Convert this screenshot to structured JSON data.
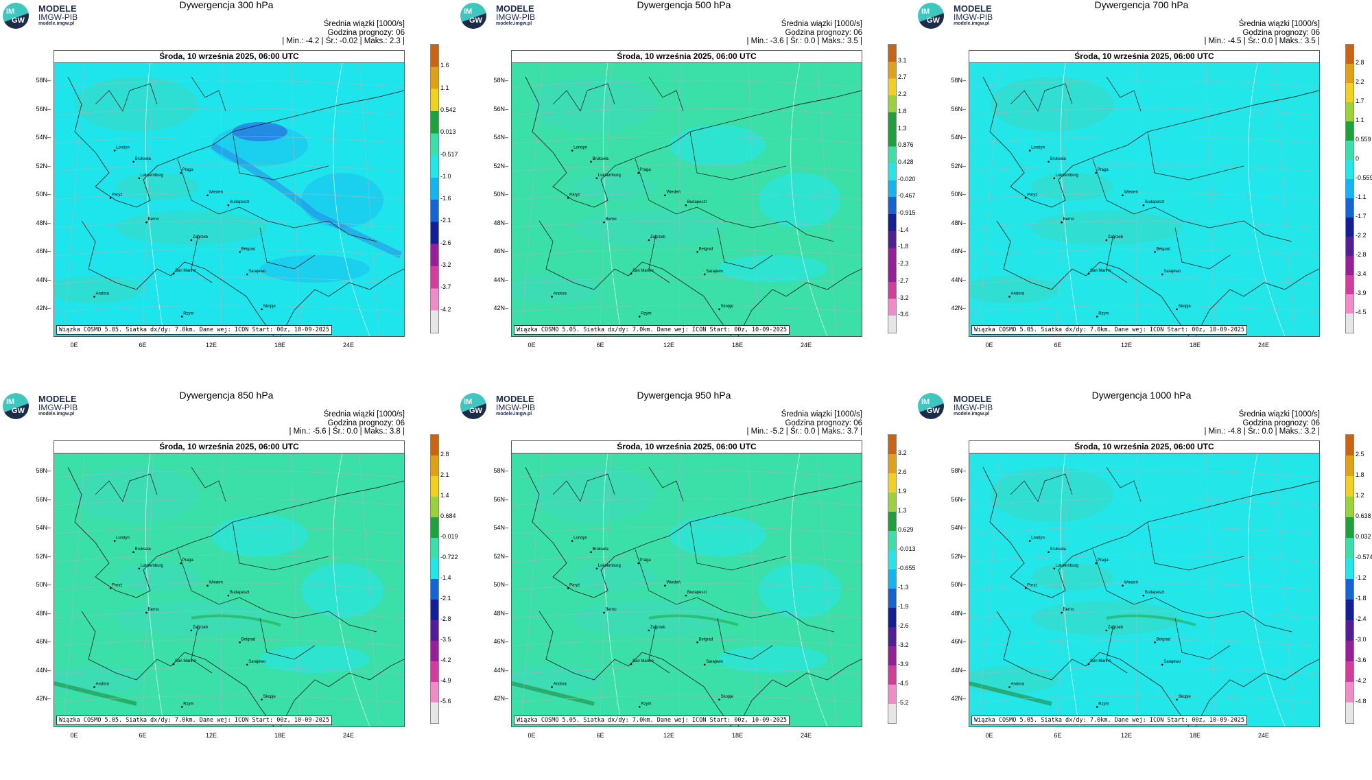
{
  "logo": {
    "mark_top": "IM",
    "mark_bottom": "GW",
    "line1": "MODELE",
    "line2": "IMGW-PIB",
    "line3": "modele.imgw.pl"
  },
  "date_label": "Środa, 10 września 2025, 06:00 UTC",
  "stats_header": "Średnia wiązki [1000/s]",
  "forecast_hour": "Godzina prognozy: 06",
  "footer": "Wiązka COSMO 5.05. Siatka dx/dy: 7.0km. Dane wej: ICON Start: 00z, 10-09-2025",
  "lat_labels": [
    "58N",
    "56N",
    "54N",
    "52N",
    "50N",
    "48N",
    "46N",
    "44N",
    "42N"
  ],
  "lon_labels": [
    "0E",
    "6E",
    "12E",
    "18E",
    "24E"
  ],
  "cities": [
    "Londyn",
    "Bruksela",
    "Luksemburg",
    "Paryż",
    "Praga",
    "Wiedeń",
    "Budapeszt",
    "Berno",
    "Zagrzeb",
    "Belgrad",
    "San Marino",
    "Sarajewo",
    "Andora",
    "Skopje",
    "Rzym"
  ],
  "panels": [
    {
      "title": "Dywergencja 300 hPa",
      "stats": "| Min.:    -4.2 | Śr.:    -0.02 | Maks.:     2.3 |",
      "colorbar": [
        "1.6",
        "1.1",
        "0.542",
        "0.013",
        "-0.517",
        "-1.0",
        "-1.6",
        "-2.1",
        "-2.6",
        "-3.2",
        "-3.7",
        "-4.2"
      ],
      "map_base": "#1ee5ec"
    },
    {
      "title": "Dywergencja 500 hPa",
      "stats": "| Min.:    -3.6 | Śr.:     0.0 | Maks.:     3.5 |",
      "colorbar": [
        "3.1",
        "2.7",
        "2.2",
        "1.8",
        "1.3",
        "0.876",
        "0.428",
        "-0.020",
        "-0.467",
        "-0.915",
        "-1.4",
        "-1.8",
        "-2.3",
        "-2.7",
        "-3.2",
        "-3.6"
      ],
      "map_base": "#3ae0a8"
    },
    {
      "title": "Dywergencja 700 hPa",
      "stats": "| Min.:    -4.5 | Śr.:     0.0 | Maks.:     3.5 |",
      "colorbar": [
        "2.8",
        "2.2",
        "1.7",
        "1.1",
        "0.559",
        "0",
        "-0.559",
        "-1.1",
        "-1.7",
        "-2.2",
        "-2.8",
        "-3.4",
        "-3.9",
        "-4.5"
      ],
      "map_base": "#22e6e8"
    },
    {
      "title": "Dywergencja 850 hPa",
      "stats": "| Min.:    -5.6 | Śr.:     0.0 | Maks.:     3.8 |",
      "colorbar": [
        "2.8",
        "2.1",
        "1.4",
        "0.684",
        "-0.019",
        "-0.722",
        "-1.4",
        "-2.1",
        "-2.8",
        "-3.5",
        "-4.2",
        "-4.9",
        "-5.6"
      ],
      "map_base": "#3ae0a8"
    },
    {
      "title": "Dywergencja 950 hPa",
      "stats": "| Min.:    -5.2 | Śr.:     0.0 | Maks.:     3.7 |",
      "colorbar": [
        "3.2",
        "2.6",
        "1.9",
        "1.3",
        "0.629",
        "-0.013",
        "-0.655",
        "-1.3",
        "-1.9",
        "-2.6",
        "-3.2",
        "-3.9",
        "-4.5",
        "-5.2"
      ],
      "map_base": "#3ae0a8"
    },
    {
      "title": "Dywergencja 1000 hPa",
      "stats": "| Min.:    -4.8 | Śr.:     0.0 | Maks.:     3.2 |",
      "colorbar": [
        "2.5",
        "1.8",
        "1.2",
        "0.638",
        "0.032",
        "-0.574",
        "-1.2",
        "-1.8",
        "-2.4",
        "-3.0",
        "-3.6",
        "-4.2",
        "-4.8"
      ],
      "map_base": "#22e6e8"
    }
  ]
}
